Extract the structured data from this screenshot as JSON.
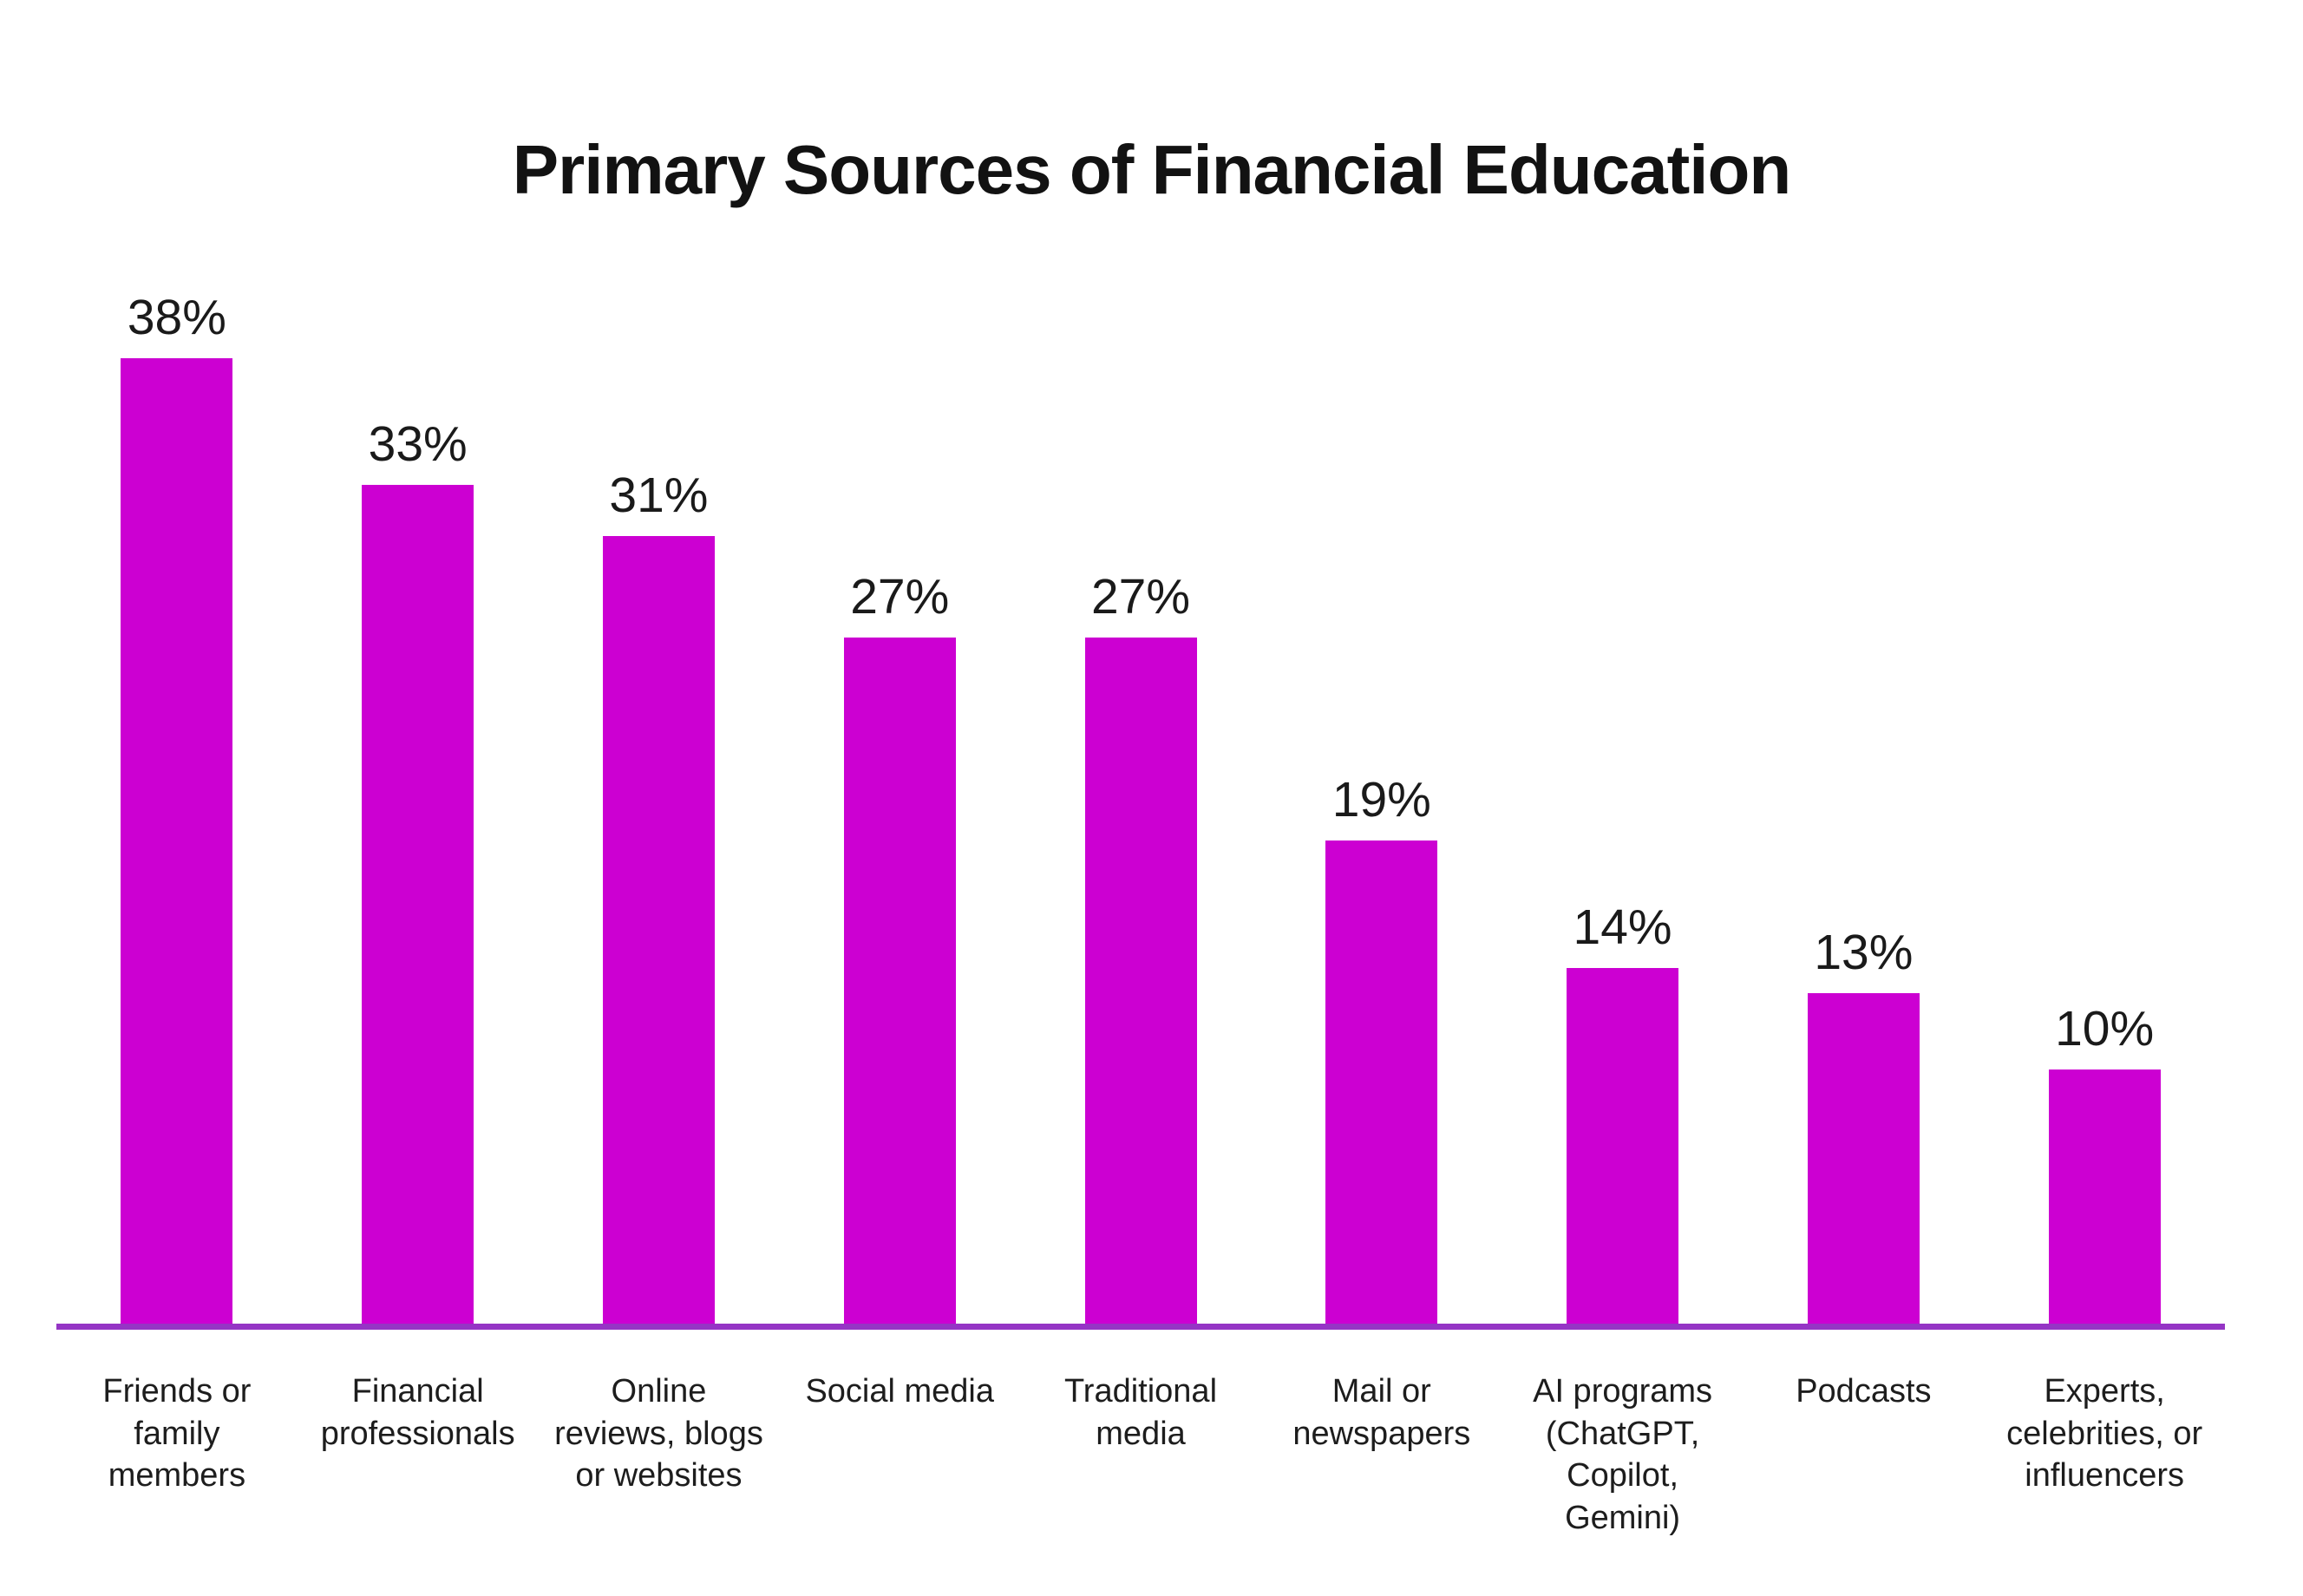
{
  "title": "Primary Sources of Financial Education",
  "colors": {
    "bar": "#CC00D2",
    "axis_line": "#9535C5",
    "text": "#1A1A1A",
    "title_text": "#121212",
    "background": "#FFFFFF"
  },
  "chart_data": {
    "type": "bar",
    "title": "Primary Sources of Financial Education",
    "categories": [
      "Friends or\nfamily\nmembers",
      "Financial\nprofessionals",
      "Online\nreviews, blogs\nor websites",
      "Social media",
      "Traditional\nmedia",
      "Mail or\nnewspapers",
      "AI programs\n(ChatGPT,\nCopilot,\nGemini)",
      "Podcasts",
      "Experts,\ncelebrities, or\ninfluencers"
    ],
    "values": [
      38,
      33,
      31,
      27,
      27,
      19,
      14,
      13,
      10
    ],
    "value_labels": [
      "38%",
      "33%",
      "31%",
      "27%",
      "27%",
      "19%",
      "14%",
      "13%",
      "10%"
    ],
    "xlabel": "",
    "ylabel": "",
    "ylim": [
      0,
      40
    ],
    "grid": false,
    "legend": false,
    "bar_color": "#CC00D2",
    "baseline_color": "#9535C5",
    "value_label_position": "above-bar",
    "unit": "percent"
  }
}
